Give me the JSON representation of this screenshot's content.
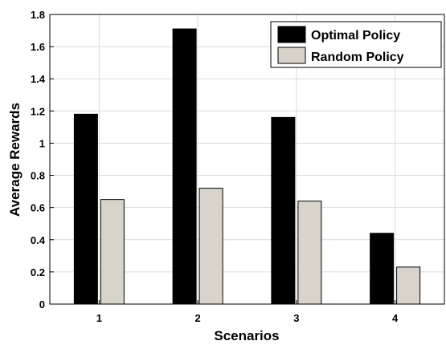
{
  "chart_data": {
    "type": "bar",
    "title": "",
    "xlabel": "Scenarios",
    "ylabel": "Average Rewards",
    "categories": [
      "1",
      "2",
      "3",
      "4"
    ],
    "series": [
      {
        "name": "Optimal Policy",
        "values": [
          1.18,
          1.71,
          1.16,
          0.44
        ],
        "color": "#000000"
      },
      {
        "name": "Random Policy",
        "values": [
          0.65,
          0.72,
          0.64,
          0.23
        ],
        "color": "#d9d4cb"
      }
    ],
    "ylim": [
      0,
      1.8
    ],
    "yticks": [
      "0",
      "0.2",
      "0.4",
      "0.6",
      "0.8",
      "1",
      "1.2",
      "1.4",
      "1.6",
      "1.8"
    ],
    "grid": true,
    "legend_position": "top-right"
  }
}
